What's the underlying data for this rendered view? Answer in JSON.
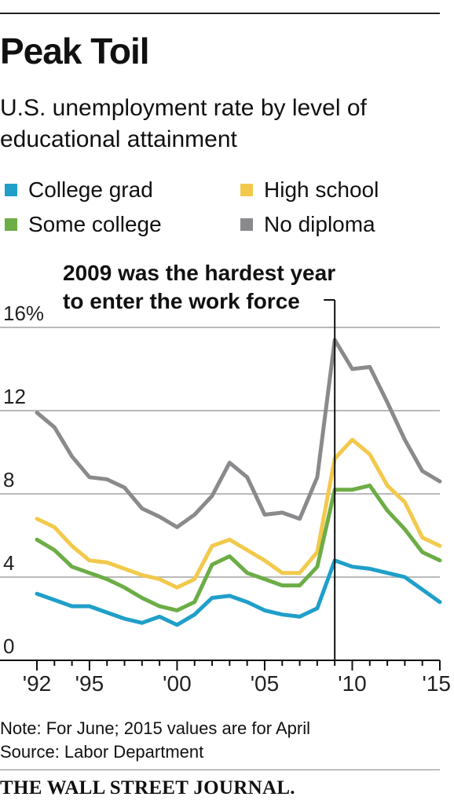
{
  "header": {
    "title": "Peak Toil",
    "subtitle": "U.S. unemployment rate by level of educational attainment"
  },
  "legend": [
    {
      "label": "College grad",
      "color": "#1f9fc9"
    },
    {
      "label": "High school",
      "color": "#f2c94c"
    },
    {
      "label": "Some college",
      "color": "#6cad46"
    },
    {
      "label": "No diploma",
      "color": "#8a8a8d"
    }
  ],
  "chart_data": {
    "type": "line",
    "title": "Peak Toil",
    "subtitle": "U.S. unemployment rate by level of educational attainment",
    "x": [
      1992,
      1993,
      1994,
      1995,
      1996,
      1997,
      1998,
      1999,
      2000,
      2001,
      2002,
      2003,
      2004,
      2005,
      2006,
      2007,
      2008,
      2009,
      2010,
      2011,
      2012,
      2013,
      2014,
      2015
    ],
    "x_tick_values": [
      1992,
      1995,
      2000,
      2005,
      2010,
      2015
    ],
    "x_tick_labels": [
      "'92",
      "'95",
      "'00",
      "'05",
      "'10",
      "'15"
    ],
    "y_tick_values": [
      0,
      4,
      8,
      12,
      16
    ],
    "y_tick_labels": [
      "0",
      "4",
      "8",
      "12",
      "16%"
    ],
    "xlim": [
      1992,
      2015
    ],
    "ylim": [
      0,
      16
    ],
    "grid": true,
    "xlabel": "",
    "ylabel": "",
    "series": [
      {
        "name": "No diploma",
        "color": "#8a8a8d",
        "values": [
          11.9,
          11.2,
          9.8,
          8.8,
          8.7,
          8.3,
          7.3,
          6.9,
          6.4,
          7.0,
          7.9,
          9.5,
          8.8,
          7.0,
          7.1,
          6.8,
          8.8,
          15.4,
          14.0,
          14.1,
          12.4,
          10.6,
          9.1,
          8.6
        ]
      },
      {
        "name": "High school",
        "color": "#f2c94c",
        "values": [
          6.8,
          6.4,
          5.5,
          4.8,
          4.7,
          4.4,
          4.1,
          3.9,
          3.5,
          3.9,
          5.5,
          5.8,
          5.3,
          4.8,
          4.2,
          4.2,
          5.2,
          9.7,
          10.6,
          9.9,
          8.4,
          7.6,
          5.9,
          5.5
        ]
      },
      {
        "name": "Some college",
        "color": "#6cad46",
        "values": [
          5.8,
          5.3,
          4.5,
          4.2,
          3.9,
          3.5,
          3.0,
          2.6,
          2.4,
          2.8,
          4.6,
          5.0,
          4.2,
          3.9,
          3.6,
          3.6,
          4.5,
          8.2,
          8.2,
          8.4,
          7.2,
          6.3,
          5.2,
          4.8
        ]
      },
      {
        "name": "College grad",
        "color": "#1f9fc9",
        "values": [
          3.2,
          2.9,
          2.6,
          2.6,
          2.3,
          2.0,
          1.8,
          2.1,
          1.7,
          2.2,
          3.0,
          3.1,
          2.8,
          2.4,
          2.2,
          2.1,
          2.5,
          4.8,
          4.5,
          4.4,
          4.2,
          4.0,
          3.4,
          2.8
        ]
      }
    ],
    "annotations": [
      {
        "text": "2009 was the hardest year to enter the work force",
        "x": 2009,
        "lines": [
          "2009 was the hardest year",
          "to enter the work force"
        ]
      }
    ]
  },
  "footer": {
    "note": "Note: For June; 2015 values are for April",
    "source": "Source: Labor Department",
    "brand": "THE WALL STREET JOURNAL."
  }
}
